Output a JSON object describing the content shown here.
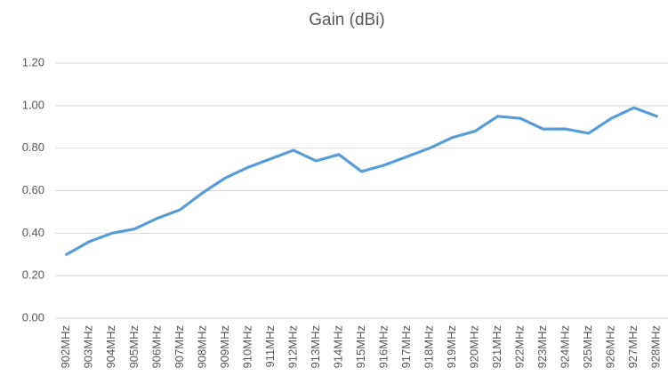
{
  "chart_data": {
    "type": "line",
    "title": "Gain (dBi)",
    "categories": [
      "902MHz",
      "903MHz",
      "904MHz",
      "905MHz",
      "906MHz",
      "907MHz",
      "908MHz",
      "909MHz",
      "910MHz",
      "911MHz",
      "912MHz",
      "913MHz",
      "914MHz",
      "915MHz",
      "916MHz",
      "917MHz",
      "918MHz",
      "919MHz",
      "920MHz",
      "921MHz",
      "922MHz",
      "923MHz",
      "924MHz",
      "925MHz",
      "926MHz",
      "927MHz",
      "928MHz"
    ],
    "series": [
      {
        "name": "Gain (dBi)",
        "color": "#5b9bd5",
        "values": [
          0.3,
          0.36,
          0.4,
          0.42,
          0.47,
          0.51,
          0.59,
          0.66,
          0.71,
          0.75,
          0.79,
          0.74,
          0.77,
          0.69,
          0.72,
          0.76,
          0.8,
          0.85,
          0.88,
          0.95,
          0.94,
          0.89,
          0.89,
          0.87,
          0.94,
          0.99,
          0.95
        ]
      }
    ],
    "ylim": [
      0,
      1.2
    ],
    "yticks": [
      {
        "value": 0,
        "label": "0.00"
      },
      {
        "value": 0.2,
        "label": "0.20"
      },
      {
        "value": 0.4,
        "label": "0.40"
      },
      {
        "value": 0.6,
        "label": "0.60"
      },
      {
        "value": 0.8,
        "label": "0.80"
      },
      {
        "value": 1.0,
        "label": "1.00"
      },
      {
        "value": 1.2,
        "label": "1.20"
      }
    ],
    "grid": true
  }
}
